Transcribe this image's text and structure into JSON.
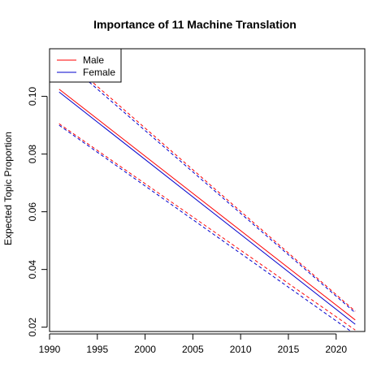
{
  "chart_data": {
    "type": "line",
    "title": "Importance of 11 Machine Translation",
    "xlabel": "",
    "ylabel": "Expected Topic Proportion",
    "xlim": [
      1990,
      2023
    ],
    "ylim": [
      0.0185,
      0.1165
    ],
    "x_ticks": [
      1990,
      1995,
      2000,
      2005,
      2010,
      2015,
      2020
    ],
    "y_ticks": [
      0.02,
      0.04,
      0.06,
      0.08,
      0.1
    ],
    "y_tick_labels": [
      "0.02",
      "0.04",
      "0.06",
      "0.08",
      "0.10"
    ],
    "legend": {
      "position": "top-left",
      "entries": [
        {
          "label": "Male",
          "color": "#ff0000"
        },
        {
          "label": "Female",
          "color": "#0000cc"
        }
      ]
    },
    "series": [
      {
        "name": "Male",
        "color": "#ff0000",
        "x": [
          1991,
          2022
        ],
        "mean": [
          0.1025,
          0.0225
        ],
        "upper": [
          0.115,
          0.0255
        ],
        "lower": [
          0.0905,
          0.019
        ]
      },
      {
        "name": "Female",
        "color": "#0000cc",
        "x": [
          1991,
          2022
        ],
        "mean": [
          0.1015,
          0.021
        ],
        "upper": [
          0.114,
          0.025
        ],
        "lower": [
          0.09,
          0.0175
        ]
      }
    ]
  }
}
